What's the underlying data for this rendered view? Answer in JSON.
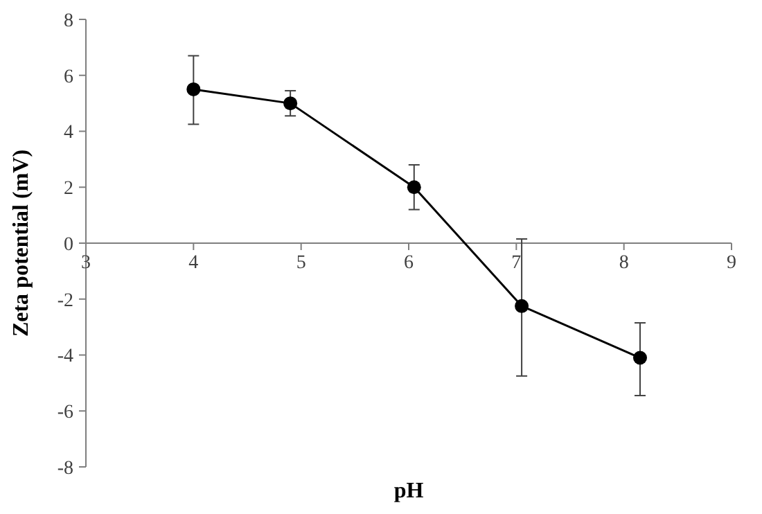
{
  "chart_data": {
    "type": "line",
    "xlabel": "pH",
    "ylabel": "Zeta potential (mV)",
    "x": [
      4.0,
      4.9,
      6.05,
      7.05,
      8.15
    ],
    "series": [
      {
        "color": "#000000",
        "values": [
          5.5,
          5.0,
          2.0,
          -2.25,
          -4.1
        ],
        "errors": [
          [
            4.25,
            6.7
          ],
          [
            4.55,
            5.45
          ],
          [
            1.2,
            2.8
          ],
          [
            -4.75,
            0.15
          ],
          [
            -5.45,
            -2.85
          ]
        ]
      }
    ],
    "xlim": [
      3,
      9
    ],
    "xticks": [
      3,
      4,
      5,
      6,
      7,
      8,
      9
    ],
    "ylim": [
      -8,
      8
    ],
    "yticks": [
      -8,
      -6,
      -4,
      -2,
      0,
      2,
      4,
      6,
      8
    ],
    "marker": "circle",
    "line_style": "solid"
  }
}
